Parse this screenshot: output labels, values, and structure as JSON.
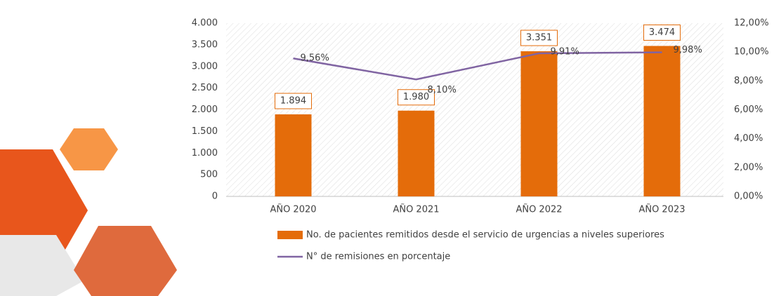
{
  "chart_data": {
    "type": "bar-line",
    "categories": [
      "AÑO 2020",
      "AÑO 2021",
      "AÑO 2022",
      "AÑO 2023"
    ],
    "series": [
      {
        "name": "No. de pacientes remitidos desde el servicio de urgencias a niveles superiores",
        "type": "bar",
        "color": "#e46c0a",
        "values": [
          1894,
          1980,
          3351,
          3474
        ],
        "value_labels": [
          "1.894",
          "1.980",
          "3.351",
          "3.474"
        ]
      },
      {
        "name": "N° de remisiones en porcentaje",
        "type": "line",
        "axis": "y2",
        "color": "#8064a2",
        "values": [
          9.56,
          8.1,
          9.91,
          9.98
        ],
        "value_labels": [
          "9,56%",
          "8,10%",
          "9,91%",
          "9,98%"
        ]
      }
    ],
    "ylim": [
      0,
      4000
    ],
    "yticks": [
      0,
      500,
      {
        "value": 1000,
        "label": "1.000"
      },
      {
        "value": 1500,
        "label": "1.500"
      },
      {
        "value": 2000,
        "label": "2.000"
      },
      {
        "value": 2500,
        "label": "2.500"
      },
      {
        "value": 3000,
        "label": "3.000"
      },
      {
        "value": 3500,
        "label": "3.500"
      },
      {
        "value": 4000,
        "label": "4.000"
      }
    ],
    "y2lim": [
      0,
      12
    ],
    "y2ticks": [
      {
        "value": 0,
        "label": "0,00%"
      },
      {
        "value": 2,
        "label": "2,00%"
      },
      {
        "value": 4,
        "label": "4,00%"
      },
      {
        "value": 6,
        "label": "6,00%"
      },
      {
        "value": 8,
        "label": "8,00%"
      },
      {
        "value": 10,
        "label": "10,00%"
      },
      {
        "value": 12,
        "label": "12,00%"
      }
    ],
    "legend": "bottom"
  }
}
